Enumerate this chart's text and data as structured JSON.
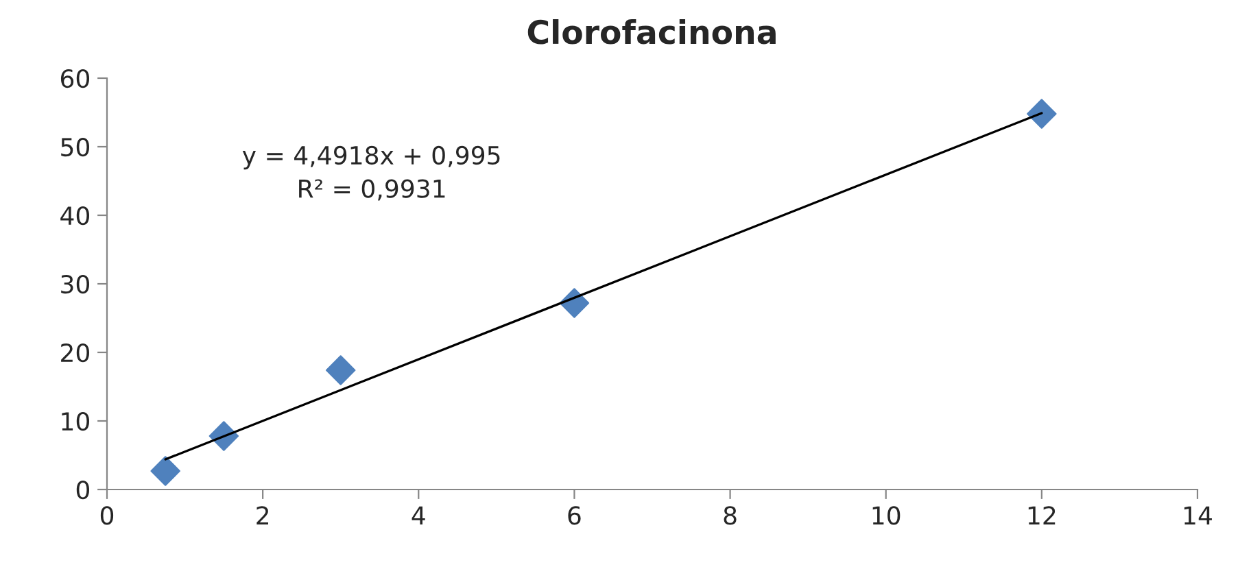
{
  "chart_data": {
    "type": "scatter",
    "title": "Clorofacinona",
    "series": [
      {
        "type": "scatter",
        "color": "#4f81bd",
        "marker": "diamond",
        "x": [
          0.75,
          1.5,
          3,
          6,
          12
        ],
        "values": [
          2.7,
          7.8,
          17.4,
          27.2,
          54.8
        ]
      },
      {
        "type": "line",
        "color": "#000000",
        "marker": "none",
        "line_style": "solid",
        "x": [
          0.75,
          12
        ],
        "values": [
          4.4,
          54.9
        ]
      }
    ],
    "annotations": [
      {
        "text": "y = 4,4918x + 0,995\nR² = 0,9931"
      }
    ],
    "xlim": [
      0,
      14
    ],
    "xticks": [
      0,
      2,
      4,
      6,
      8,
      10,
      12,
      14
    ],
    "ylim": [
      0,
      60
    ],
    "yticks": [
      0,
      10,
      20,
      30,
      40,
      50,
      60
    ],
    "grid": false,
    "legend": false
  }
}
